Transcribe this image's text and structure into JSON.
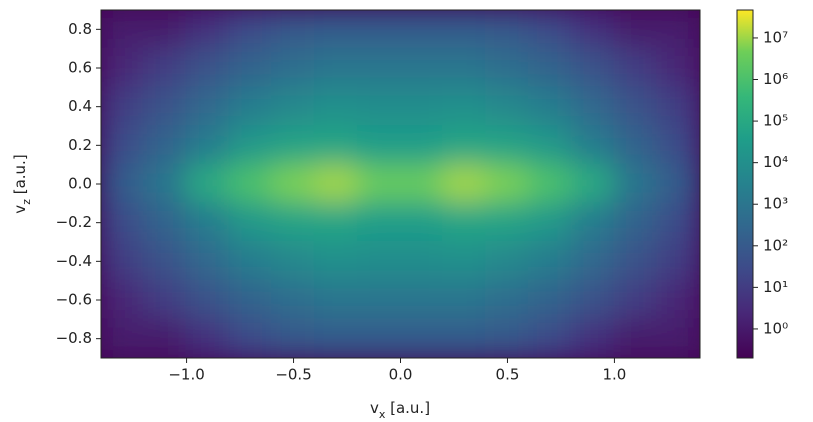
{
  "chart_data": {
    "type": "heatmap",
    "x_label": {
      "base": "v",
      "sub": "x",
      "rest": " [a.u.]"
    },
    "y_label": {
      "base": "v",
      "sub": "z",
      "rest": " [a.u.]"
    },
    "x": [
      -1.3,
      -1.1,
      -0.9,
      -0.7,
      -0.5,
      -0.3,
      -0.1,
      0.1,
      0.3,
      0.5,
      0.7,
      0.9,
      1.1,
      1.3
    ],
    "y": [
      0.8,
      0.6,
      0.4,
      0.2,
      0.0,
      -0.2,
      -0.4,
      -0.6,
      -0.8
    ],
    "z": [
      [
        1,
        1,
        5,
        30,
        80,
        100,
        100,
        100,
        100,
        80,
        30,
        5,
        1,
        1
      ],
      [
        2,
        10,
        50,
        200,
        500,
        1000,
        1000,
        1000,
        1000,
        500,
        200,
        50,
        10,
        2
      ],
      [
        10,
        50,
        300,
        2000,
        5000,
        10000,
        8000,
        8000,
        10000,
        5000,
        2000,
        300,
        50,
        10
      ],
      [
        30,
        200,
        2000,
        20000,
        50000,
        60000,
        30000,
        30000,
        60000,
        50000,
        20000,
        2000,
        200,
        30
      ],
      [
        100,
        1000,
        100000,
        1000000,
        5000000,
        10000000,
        3000000,
        3000000,
        10000000,
        5000000,
        1000000,
        100000,
        1000,
        100
      ],
      [
        30,
        200,
        2000,
        20000,
        50000,
        60000,
        30000,
        30000,
        60000,
        50000,
        20000,
        2000,
        200,
        30
      ],
      [
        10,
        50,
        300,
        2000,
        5000,
        10000,
        8000,
        8000,
        10000,
        5000,
        2000,
        300,
        50,
        10
      ],
      [
        2,
        10,
        50,
        200,
        500,
        1000,
        1000,
        1000,
        1000,
        500,
        200,
        50,
        10,
        2
      ],
      [
        1,
        1,
        5,
        30,
        80,
        100,
        100,
        100,
        100,
        80,
        30,
        5,
        1,
        1
      ]
    ],
    "xlim": [
      -1.4,
      1.4
    ],
    "xticks": [
      {
        "value": -1.0,
        "label": "−1.0"
      },
      {
        "value": -0.5,
        "label": "−0.5"
      },
      {
        "value": 0.0,
        "label": "0.0"
      },
      0.5,
      {
        "value": 1.0,
        "label": "1.0"
      }
    ],
    "ylim": [
      -0.9,
      0.9
    ],
    "yticks": [
      0.8,
      0.6,
      0.4,
      0.2,
      {
        "value": 0.0,
        "label": "0.0"
      },
      {
        "value": -0.2,
        "label": "−0.2"
      },
      {
        "value": -0.4,
        "label": "−0.4"
      },
      {
        "value": -0.6,
        "label": "−0.6"
      },
      {
        "value": -0.8,
        "label": "−0.8"
      }
    ],
    "color_scale": "log",
    "clim": [
      0.2,
      47000000
    ],
    "cticks": [
      {
        "value": 1,
        "label": "10⁰"
      },
      {
        "value": 10,
        "label": "10¹"
      },
      {
        "value": 100,
        "label": "10²"
      },
      {
        "value": 1000,
        "label": "10³"
      },
      {
        "value": 10000,
        "label": "10⁴"
      },
      {
        "value": 100000,
        "label": "10⁵"
      },
      {
        "value": 1000000,
        "label": "10⁶"
      },
      {
        "value": 10000000,
        "label": "10⁷"
      }
    ]
  }
}
